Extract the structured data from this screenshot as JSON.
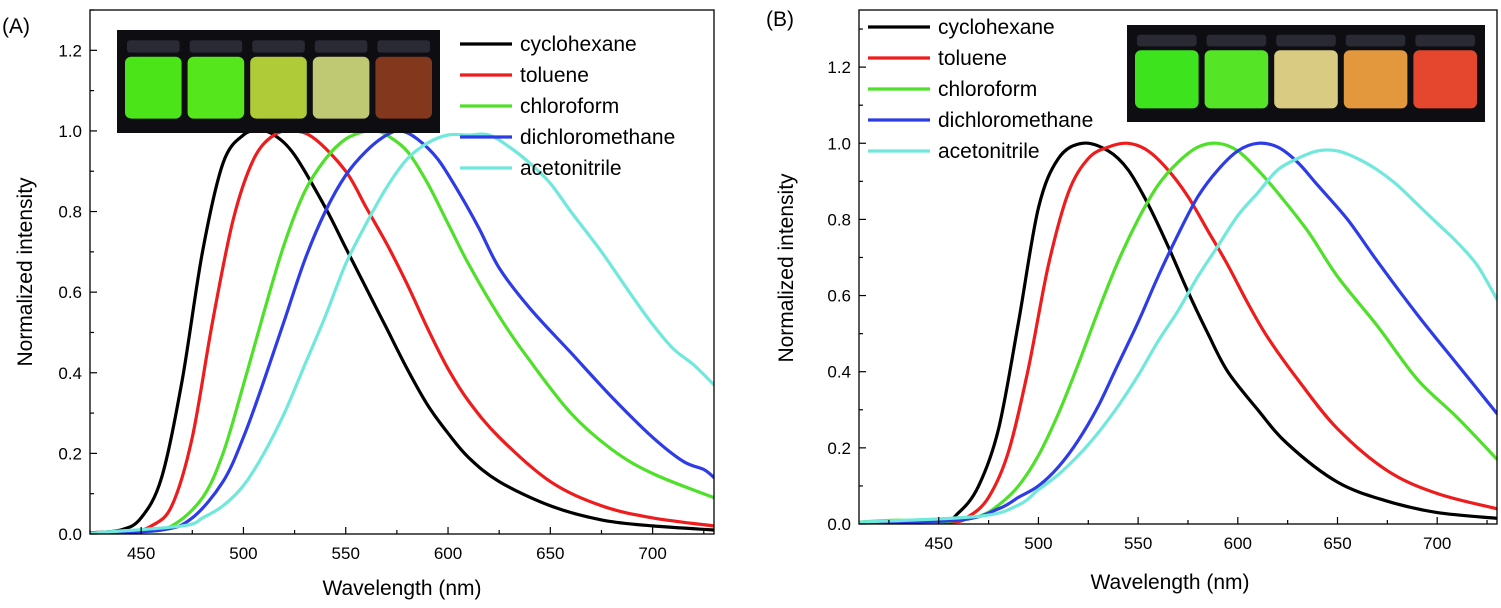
{
  "chart_data": [
    {
      "type": "line",
      "panel_label": "(A)",
      "xlabel": "Wavelength (nm)",
      "ylabel": "Normalized intensity",
      "xlim": [
        425,
        730
      ],
      "ylim": [
        0,
        1.3
      ],
      "xticks": [
        450,
        500,
        550,
        600,
        650,
        700
      ],
      "xtick_labels": [
        "450",
        "500",
        "550",
        "600",
        "650",
        "700"
      ],
      "yticks": [
        0,
        0.2,
        0.4,
        0.6,
        0.8,
        1.0,
        1.2
      ],
      "ytick_labels": [
        "0.0",
        "0.2",
        "0.4",
        "0.6",
        "0.8",
        "1.0",
        "1.2"
      ],
      "grid": false,
      "legend_position": "top-right",
      "inset": "photo of five vials under UV light",
      "inset_colors": [
        "#4ef01a",
        "#5af21c",
        "#b8d63a",
        "#c9d47a",
        "#8a3a1e"
      ],
      "series": [
        {
          "name": "cyclohexane",
          "color": "#000000",
          "x": [
            425,
            440,
            450,
            460,
            470,
            480,
            490,
            500,
            508,
            515,
            525,
            540,
            550,
            560,
            570,
            580,
            590,
            600,
            610,
            625,
            650,
            675,
            700,
            730
          ],
          "y": [
            0.003,
            0.01,
            0.04,
            0.14,
            0.38,
            0.7,
            0.92,
            0.99,
            1.0,
            0.99,
            0.94,
            0.81,
            0.71,
            0.61,
            0.51,
            0.41,
            0.32,
            0.25,
            0.19,
            0.13,
            0.07,
            0.035,
            0.02,
            0.01
          ]
        },
        {
          "name": "toluene",
          "color": "#ee1c1c",
          "x": [
            425,
            445,
            455,
            465,
            475,
            485,
            495,
            505,
            515,
            525,
            535,
            550,
            560,
            570,
            580,
            590,
            600,
            610,
            625,
            650,
            675,
            700,
            730
          ],
          "y": [
            0.002,
            0.006,
            0.02,
            0.07,
            0.24,
            0.53,
            0.78,
            0.93,
            0.99,
            1.0,
            0.98,
            0.9,
            0.81,
            0.72,
            0.62,
            0.51,
            0.41,
            0.33,
            0.24,
            0.13,
            0.07,
            0.04,
            0.02
          ]
        },
        {
          "name": "chloroform",
          "color": "#4fe02a",
          "x": [
            425,
            450,
            465,
            480,
            490,
            500,
            510,
            520,
            530,
            540,
            550,
            560,
            565,
            570,
            580,
            590,
            600,
            610,
            625,
            640,
            660,
            680,
            700,
            730
          ],
          "y": [
            0.002,
            0.005,
            0.02,
            0.09,
            0.2,
            0.37,
            0.55,
            0.72,
            0.85,
            0.93,
            0.98,
            1.0,
            1.0,
            0.99,
            0.95,
            0.87,
            0.77,
            0.67,
            0.54,
            0.43,
            0.3,
            0.21,
            0.15,
            0.09
          ]
        },
        {
          "name": "dichloromethane",
          "color": "#2e3ce8",
          "x": [
            425,
            460,
            475,
            490,
            500,
            510,
            520,
            530,
            540,
            550,
            560,
            570,
            577,
            585,
            595,
            605,
            615,
            625,
            640,
            660,
            680,
            700,
            715,
            725,
            730
          ],
          "y": [
            0.002,
            0.01,
            0.04,
            0.13,
            0.24,
            0.38,
            0.53,
            0.68,
            0.8,
            0.89,
            0.95,
            0.99,
            1.0,
            0.98,
            0.93,
            0.85,
            0.76,
            0.66,
            0.56,
            0.45,
            0.34,
            0.24,
            0.18,
            0.16,
            0.14
          ]
        },
        {
          "name": "acetonitrile",
          "color": "#70e8dc",
          "x": [
            425,
            470,
            480,
            490,
            500,
            510,
            520,
            530,
            540,
            550,
            560,
            570,
            580,
            590,
            600,
            610,
            620,
            630,
            640,
            650,
            660,
            675,
            690,
            700,
            710,
            720,
            730
          ],
          "y": [
            0.002,
            0.02,
            0.04,
            0.07,
            0.12,
            0.2,
            0.3,
            0.42,
            0.54,
            0.67,
            0.77,
            0.86,
            0.93,
            0.97,
            0.99,
            0.99,
            0.99,
            0.96,
            0.92,
            0.87,
            0.8,
            0.7,
            0.59,
            0.52,
            0.46,
            0.42,
            0.37
          ]
        }
      ]
    },
    {
      "type": "line",
      "panel_label": "(B)",
      "xlabel": "Wavelength (nm)",
      "ylabel": "Normalized intensity",
      "xlim": [
        410,
        730
      ],
      "ylim": [
        0,
        1.35
      ],
      "xticks": [
        450,
        500,
        550,
        600,
        650,
        700
      ],
      "xtick_labels": [
        "450",
        "500",
        "550",
        "600",
        "650",
        "700"
      ],
      "yticks": [
        0,
        0.2,
        0.4,
        0.6,
        0.8,
        1.0,
        1.2
      ],
      "ytick_labels": [
        "0.0",
        "0.2",
        "0.4",
        "0.6",
        "0.8",
        "1.0",
        "1.2"
      ],
      "grid": false,
      "legend_position": "top-left",
      "inset": "photo of five vials under UV light",
      "inset_colors": [
        "#40f020",
        "#5af028",
        "#e6d68a",
        "#f0a040",
        "#f04a30"
      ],
      "series": [
        {
          "name": "cyclohexane",
          "color": "#000000",
          "x": [
            410,
            450,
            460,
            470,
            480,
            490,
            500,
            510,
            522,
            535,
            545,
            555,
            565,
            575,
            585,
            595,
            610,
            625,
            650,
            675,
            700,
            730
          ],
          "y": [
            0.005,
            0.005,
            0.03,
            0.1,
            0.25,
            0.53,
            0.83,
            0.96,
            1.0,
            0.98,
            0.93,
            0.84,
            0.73,
            0.61,
            0.5,
            0.4,
            0.3,
            0.21,
            0.11,
            0.06,
            0.03,
            0.015
          ]
        },
        {
          "name": "toluene",
          "color": "#ee1c1c",
          "x": [
            410,
            455,
            465,
            475,
            485,
            495,
            505,
            515,
            525,
            535,
            545,
            555,
            565,
            575,
            585,
            595,
            605,
            615,
            630,
            650,
            675,
            700,
            730
          ],
          "y": [
            0.005,
            0.005,
            0.02,
            0.07,
            0.19,
            0.41,
            0.68,
            0.87,
            0.96,
            0.99,
            1.0,
            0.98,
            0.93,
            0.86,
            0.77,
            0.68,
            0.58,
            0.49,
            0.38,
            0.25,
            0.14,
            0.08,
            0.04
          ]
        },
        {
          "name": "chloroform",
          "color": "#4fe02a",
          "x": [
            410,
            430,
            450,
            470,
            480,
            490,
            500,
            510,
            520,
            530,
            540,
            550,
            560,
            570,
            580,
            590,
            600,
            610,
            620,
            635,
            650,
            670,
            690,
            710,
            730
          ],
          "y": [
            0.005,
            0.01,
            0.005,
            0.02,
            0.05,
            0.1,
            0.18,
            0.29,
            0.42,
            0.56,
            0.69,
            0.8,
            0.89,
            0.95,
            0.99,
            1.0,
            0.98,
            0.93,
            0.87,
            0.77,
            0.65,
            0.52,
            0.38,
            0.28,
            0.17
          ]
        },
        {
          "name": "dichloromethane",
          "color": "#2e3ce8",
          "x": [
            410,
            460,
            480,
            490,
            500,
            510,
            520,
            530,
            540,
            550,
            560,
            570,
            580,
            590,
            600,
            610,
            620,
            630,
            640,
            655,
            670,
            690,
            710,
            730
          ],
          "y": [
            0.005,
            0.01,
            0.04,
            0.07,
            0.1,
            0.15,
            0.22,
            0.31,
            0.42,
            0.53,
            0.65,
            0.76,
            0.86,
            0.93,
            0.98,
            1.0,
            0.99,
            0.95,
            0.89,
            0.8,
            0.69,
            0.55,
            0.42,
            0.29
          ]
        },
        {
          "name": "acetonitrile",
          "color": "#70e8dc",
          "x": [
            410,
            470,
            490,
            500,
            510,
            520,
            530,
            540,
            550,
            560,
            570,
            580,
            590,
            600,
            610,
            620,
            630,
            640,
            650,
            660,
            670,
            680,
            690,
            700,
            710,
            720,
            730
          ],
          "y": [
            0.005,
            0.02,
            0.05,
            0.09,
            0.13,
            0.18,
            0.24,
            0.31,
            0.39,
            0.48,
            0.56,
            0.65,
            0.73,
            0.81,
            0.87,
            0.93,
            0.96,
            0.98,
            0.98,
            0.96,
            0.93,
            0.89,
            0.84,
            0.79,
            0.74,
            0.68,
            0.59
          ]
        }
      ]
    }
  ]
}
